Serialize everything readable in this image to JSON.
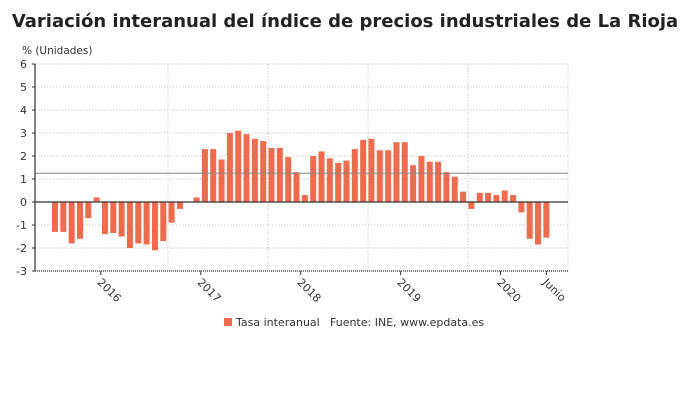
{
  "chart_data": {
    "type": "bar",
    "title": "Variación interanual del índice de precios industriales de La Rioja",
    "ylabel": "% (Unidades)",
    "xlabel": "",
    "ylim": [
      -3,
      6
    ],
    "yticks": [
      -3,
      -2,
      -1,
      0,
      1,
      2,
      3,
      4,
      5,
      6
    ],
    "grid": true,
    "x_tick_labels": [
      "2016",
      "2017",
      "2018",
      "2019",
      "2020",
      "Junio"
    ],
    "reference_line": 1.25,
    "categories": [
      "2015-07",
      "2015-08",
      "2015-09",
      "2015-10",
      "2015-11",
      "2015-12",
      "2016-01",
      "2016-02",
      "2016-03",
      "2016-04",
      "2016-05",
      "2016-06",
      "2016-07",
      "2016-08",
      "2016-09",
      "2016-10",
      "2016-11",
      "2016-12",
      "2017-01",
      "2017-02",
      "2017-03",
      "2017-04",
      "2017-05",
      "2017-06",
      "2017-07",
      "2017-08",
      "2017-09",
      "2017-10",
      "2017-11",
      "2017-12",
      "2018-01",
      "2018-02",
      "2018-03",
      "2018-04",
      "2018-05",
      "2018-06",
      "2018-07",
      "2018-08",
      "2018-09",
      "2018-10",
      "2018-11",
      "2018-12",
      "2019-01",
      "2019-02",
      "2019-03",
      "2019-04",
      "2019-05",
      "2019-06",
      "2019-07",
      "2019-08",
      "2019-09",
      "2019-10",
      "2019-11",
      "2019-12",
      "2020-01",
      "2020-02",
      "2020-03",
      "2020-04",
      "2020-05",
      "2020-06"
    ],
    "series": [
      {
        "name": "Tasa interanual",
        "color": "#ee6c4d",
        "values": [
          -1.3,
          -1.3,
          -1.8,
          -1.6,
          -0.7,
          0.2,
          -1.4,
          -1.35,
          -1.5,
          -2.0,
          -1.8,
          -1.85,
          -2.1,
          -1.7,
          -0.9,
          -0.3,
          0.0,
          0.2,
          2.3,
          2.3,
          1.85,
          3.0,
          3.1,
          2.95,
          2.75,
          2.65,
          2.35,
          2.35,
          1.95,
          1.3,
          0.3,
          2.0,
          2.2,
          1.9,
          1.7,
          1.8,
          2.3,
          2.7,
          2.75,
          2.25,
          2.25,
          2.6,
          2.6,
          1.6,
          2.0,
          1.75,
          1.75,
          1.3,
          1.1,
          0.45,
          -0.3,
          0.4,
          0.4,
          0.3,
          0.5,
          0.3,
          -0.45,
          -1.6,
          -1.85,
          -1.55
        ]
      }
    ],
    "legend": "bottom",
    "source": "Fuente: INE, www.epdata.es"
  }
}
